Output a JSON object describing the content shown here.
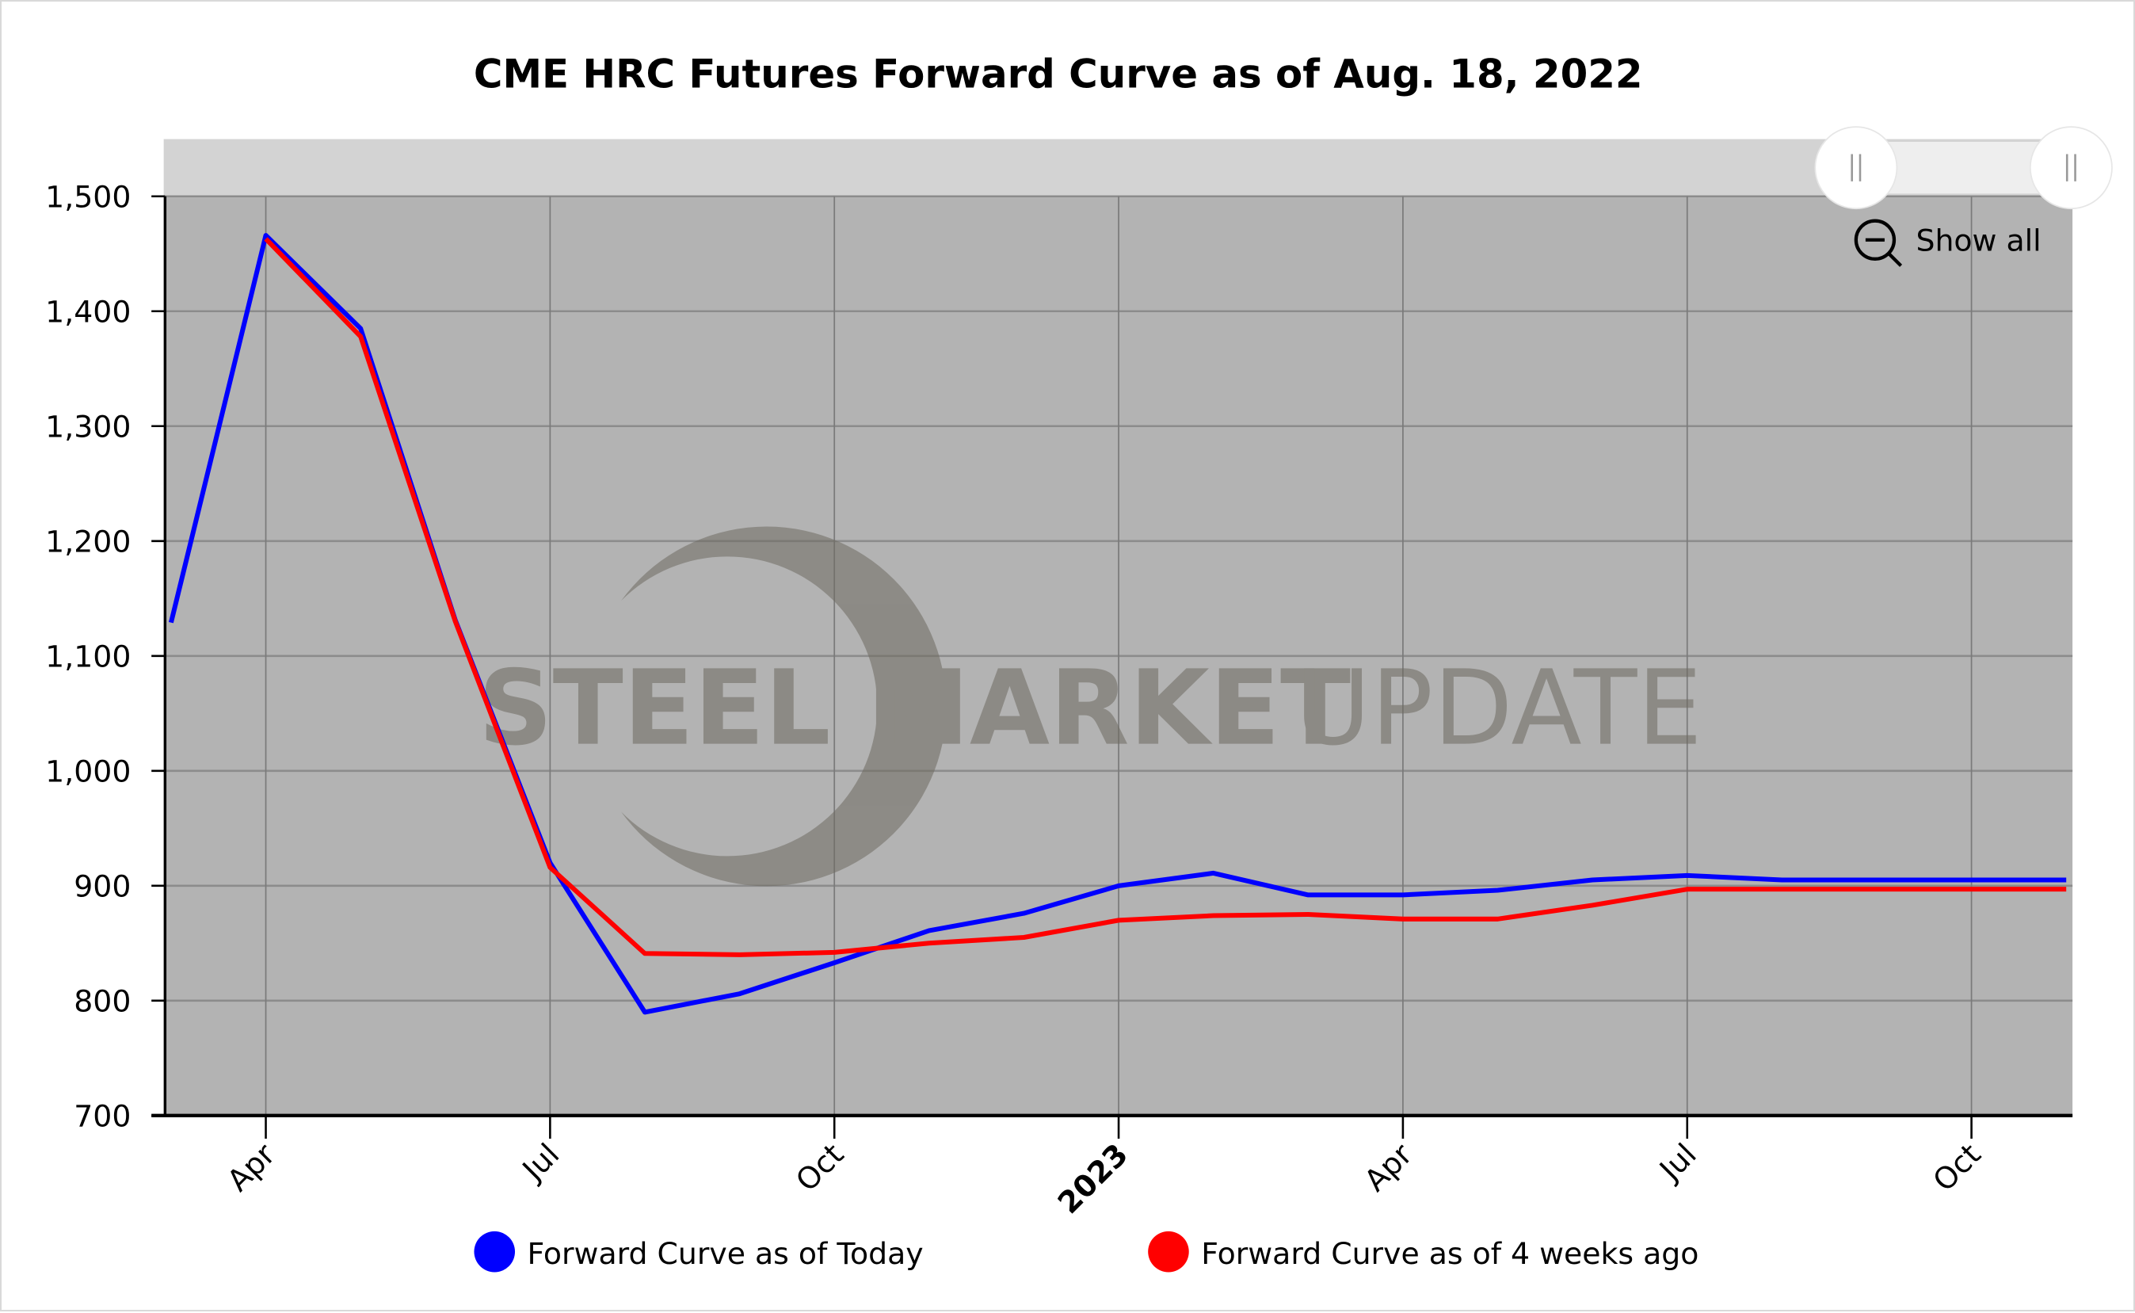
{
  "chart_data": {
    "type": "line",
    "title": "CME HRC Futures Forward Curve as of Aug. 18, 2022",
    "xlabel": "",
    "ylabel": "",
    "ylim": [
      700,
      1500
    ],
    "yticks": [
      700,
      800,
      900,
      1000,
      1100,
      1200,
      1300,
      1400,
      1500
    ],
    "ytick_labels": [
      "700",
      "800",
      "900",
      "1,000",
      "1,100",
      "1,200",
      "1,300",
      "1,400",
      "1,500"
    ],
    "xlim": [
      "2022-03",
      "2023-11"
    ],
    "xticks": [
      {
        "x": "2022-04",
        "label": "Apr",
        "bold": false
      },
      {
        "x": "2022-07",
        "label": "Jul",
        "bold": false
      },
      {
        "x": "2022-10",
        "label": "Oct",
        "bold": false
      },
      {
        "x": "2023-01",
        "label": "2023",
        "bold": true
      },
      {
        "x": "2023-04",
        "label": "Apr",
        "bold": false
      },
      {
        "x": "2023-07",
        "label": "Jul",
        "bold": false
      },
      {
        "x": "2023-10",
        "label": "Oct",
        "bold": false
      }
    ],
    "grid": true,
    "legend_position": "bottom",
    "series": [
      {
        "name": "Forward Curve as of Today",
        "color": "#0000ff",
        "x": [
          "2022-03",
          "2022-04",
          "2022-05",
          "2022-06",
          "2022-07",
          "2022-08",
          "2022-09",
          "2022-10",
          "2022-11",
          "2022-12",
          "2023-01",
          "2023-02",
          "2023-03",
          "2023-04",
          "2023-05",
          "2023-06",
          "2023-07",
          "2023-08",
          "2023-09",
          "2023-10",
          "2023-11"
        ],
        "values": [
          1129,
          1466,
          1385,
          1131,
          920,
          790,
          806,
          833,
          861,
          876,
          900,
          911,
          892,
          892,
          896,
          905,
          909,
          905,
          905,
          905,
          905
        ]
      },
      {
        "name": "Forward Curve as of 4 weeks ago",
        "color": "#ff0000",
        "x": [
          "2022-04",
          "2022-05",
          "2022-06",
          "2022-07",
          "2022-08",
          "2022-09",
          "2022-10",
          "2022-11",
          "2022-12",
          "2023-01",
          "2023-02",
          "2023-03",
          "2023-04",
          "2023-05",
          "2023-06",
          "2023-07",
          "2023-08",
          "2023-09",
          "2023-10",
          "2023-11"
        ],
        "values": [
          1463,
          1378,
          1130,
          916,
          841,
          840,
          842,
          850,
          855,
          870,
          874,
          875,
          871,
          871,
          883,
          897,
          897,
          897,
          897,
          897
        ]
      }
    ]
  },
  "controls": {
    "show_all_label": "Show all",
    "zoom_out_icon": "magnifier-minus-icon",
    "scrollbar_handle_icon": "grip-icon"
  },
  "watermark": {
    "text_bold": "STEEL MARKET",
    "text_light": "UPDATE"
  },
  "colors": {
    "plot_background": "#b3b3b3",
    "scrollbar": "#d3d3d3",
    "scrollbar_selected": "#eeeeee"
  }
}
